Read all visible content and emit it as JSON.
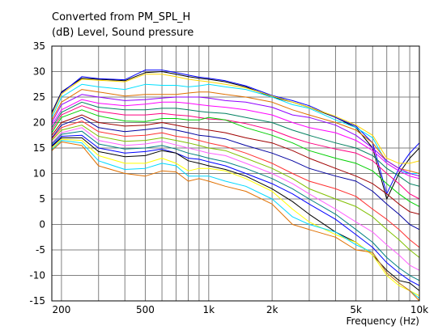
{
  "chart_data": {
    "type": "line",
    "title": "Converted from PM_SPL_H",
    "ylabel": "(dB)  Level, Sound pressure",
    "xlabel": "Frequency  (Hz)",
    "x_scale": "log",
    "xlim": [
      180,
      10000
    ],
    "ylim": [
      -15,
      35
    ],
    "grid": true,
    "y_ticks": [
      "35",
      "30",
      "25",
      "20",
      "15",
      "10",
      "5",
      "0",
      "-5",
      "-10",
      "-15"
    ],
    "x_ticks": [
      "200",
      "500",
      "1k",
      "2k",
      "5k",
      "10k"
    ],
    "x_tick_values": [
      200,
      500,
      1000,
      2000,
      5000,
      10000
    ],
    "x": [
      180,
      200,
      250,
      300,
      400,
      500,
      600,
      700,
      800,
      900,
      1000,
      1200,
      1500,
      2000,
      2500,
      3000,
      4000,
      5000,
      6000,
      7000,
      8000,
      9000,
      10000
    ],
    "series": [
      {
        "color": "#000000",
        "values": [
          22,
          26,
          28.7,
          28.5,
          28.2,
          29.8,
          30,
          29.5,
          29,
          28.7,
          28.5,
          28,
          27,
          25,
          24,
          23,
          21,
          19,
          15,
          5,
          10,
          13,
          15
        ]
      },
      {
        "color": "#0000ff",
        "values": [
          21.8,
          25.8,
          29,
          28.6,
          28.4,
          30.3,
          30.3,
          29.8,
          29.3,
          28.9,
          28.7,
          28.2,
          27.2,
          25.3,
          24.3,
          23.3,
          21,
          19.3,
          16,
          6,
          11,
          14,
          16
        ]
      },
      {
        "color": "#ffd700",
        "values": [
          21.5,
          25.6,
          28.5,
          28.3,
          28,
          29.5,
          29.5,
          29,
          28.5,
          28.2,
          28,
          27.5,
          26.8,
          25.2,
          24,
          23,
          21.2,
          19.5,
          17.5,
          13,
          12,
          12,
          12.5
        ]
      },
      {
        "color": "#00e0ff",
        "values": [
          21,
          25,
          27.5,
          27,
          26.5,
          27.5,
          27.3,
          27.3,
          27,
          27.2,
          27.5,
          27,
          26.5,
          25,
          23.5,
          22.8,
          20.5,
          19,
          17,
          12,
          10.5,
          10,
          10
        ]
      },
      {
        "color": "#e07000",
        "values": [
          20.5,
          24,
          26.5,
          26,
          25.2,
          25.5,
          25.5,
          25.5,
          25.8,
          26,
          26,
          25.5,
          25,
          24,
          22.5,
          21.5,
          20,
          18.5,
          16,
          12.5,
          11,
          10.5,
          10
        ]
      },
      {
        "color": "#9000ff",
        "values": [
          20,
          23.5,
          25.5,
          25,
          24.3,
          24.5,
          24.8,
          25,
          25,
          25,
          24.8,
          24.3,
          24,
          23,
          21.5,
          21,
          19.5,
          17.5,
          15,
          12.5,
          11,
          10,
          9.5
        ]
      },
      {
        "color": "#ff00ff",
        "values": [
          19.5,
          22.5,
          24.5,
          23.8,
          23.3,
          23.6,
          24,
          24,
          23.8,
          23.5,
          23.3,
          23,
          22.5,
          21.5,
          20,
          19,
          18,
          16.5,
          14.5,
          12,
          10.5,
          9.5,
          9
        ]
      },
      {
        "color": "#008060",
        "values": [
          19,
          22,
          24,
          23,
          22.5,
          22.5,
          22.8,
          22.8,
          22.5,
          22.2,
          22,
          21.8,
          21,
          20,
          18.5,
          17.5,
          16,
          15,
          13.5,
          11,
          9.5,
          8,
          7.5
        ]
      },
      {
        "color": "#ff0080",
        "values": [
          18.5,
          21.5,
          23.3,
          22.2,
          21.5,
          21.5,
          21.8,
          21.5,
          21.3,
          21,
          20.7,
          20.5,
          19.8,
          18.5,
          17,
          16,
          14.8,
          14,
          12.5,
          10,
          8,
          6,
          5
        ]
      },
      {
        "color": "#00d000",
        "values": [
          18,
          21,
          22.5,
          21.3,
          20.3,
          20.2,
          20.8,
          20.8,
          20.5,
          20.5,
          21,
          20.5,
          19,
          17.5,
          16,
          14.5,
          13,
          12,
          10.5,
          8,
          6,
          4.5,
          3.5
        ]
      },
      {
        "color": "#a00000",
        "values": [
          17.5,
          20,
          21.5,
          20,
          19.3,
          19.5,
          20,
          19.5,
          19,
          18.8,
          18.5,
          18,
          17,
          16,
          14.5,
          13,
          11,
          9.5,
          8,
          6,
          4,
          2.5,
          2
        ]
      },
      {
        "color": "#0000a0",
        "values": [
          17,
          19.5,
          21,
          19,
          18.2,
          18.6,
          19,
          18.5,
          18,
          17.5,
          17.3,
          16.8,
          15.5,
          14,
          12.5,
          11,
          9.5,
          8.5,
          6.5,
          4,
          2,
          0,
          -1
        ]
      },
      {
        "color": "#ff3030",
        "values": [
          16.8,
          19,
          20.3,
          18.2,
          17.3,
          17.5,
          18,
          17.3,
          17,
          16.5,
          16,
          15.3,
          14,
          12,
          10,
          8.5,
          7,
          5.5,
          3,
          1,
          -1,
          -3,
          -4.5
        ]
      },
      {
        "color": "#80c000",
        "values": [
          16.5,
          18.5,
          19.5,
          17.3,
          16.3,
          16.5,
          17,
          16.5,
          16,
          15.5,
          15,
          14.5,
          13,
          11,
          9,
          7,
          5,
          3.5,
          1.5,
          -1,
          -3,
          -5,
          -6.5
        ]
      },
      {
        "color": "#ff60ff",
        "values": [
          16,
          18,
          19,
          16.5,
          15.5,
          15.8,
          16.3,
          15.6,
          15,
          14.5,
          14,
          13.5,
          12,
          10,
          8,
          6,
          3,
          0.5,
          -1.5,
          -4,
          -6,
          -8,
          -9
        ]
      },
      {
        "color": "#008080",
        "values": [
          15.8,
          17.7,
          18.3,
          15.8,
          14.8,
          15,
          15.5,
          14.8,
          14,
          13.5,
          13,
          12.3,
          11,
          9,
          7,
          5,
          2,
          -1,
          -3.5,
          -6.5,
          -8.5,
          -10,
          -11
        ]
      },
      {
        "color": "#0000ff",
        "values": [
          15.5,
          17.3,
          17.5,
          15,
          14,
          14.3,
          14.8,
          14,
          13,
          12.8,
          12.3,
          11.5,
          10,
          8,
          6,
          4,
          1,
          -2,
          -4.5,
          -7.5,
          -9.5,
          -11,
          -12
        ]
      },
      {
        "color": "#000000",
        "values": [
          15.3,
          17,
          17,
          14.3,
          13.3,
          13.5,
          14.5,
          14,
          12.5,
          12,
          11.5,
          10.8,
          9.5,
          7,
          4.5,
          2,
          -1.5,
          -3.5,
          -6,
          -9,
          -11,
          -11.5,
          -13
        ]
      },
      {
        "color": "#ffff00",
        "values": [
          15,
          16.7,
          16.5,
          13.5,
          12,
          12,
          13,
          12,
          10.5,
          11,
          11,
          10.5,
          9,
          6.5,
          3,
          0.5,
          -2,
          -3.5,
          -6,
          -10,
          -12,
          -13,
          -14
        ]
      },
      {
        "color": "#00d8ff",
        "values": [
          14.7,
          16.5,
          16,
          12.5,
          10.8,
          11,
          12,
          11.5,
          9.5,
          9.5,
          9.5,
          8.5,
          7.5,
          5,
          1.5,
          0,
          -1.5,
          -4,
          -5.5,
          -9.5,
          -11.5,
          -13,
          -14.5
        ]
      },
      {
        "color": "#e07000",
        "values": [
          14.5,
          16.2,
          15.5,
          11.5,
          10,
          9.5,
          10.5,
          10.3,
          8.5,
          9,
          8.5,
          7.5,
          6.5,
          4,
          0,
          -1,
          -2.5,
          -5,
          -5.5,
          -9.5,
          -11.5,
          -13,
          -15
        ]
      }
    ]
  }
}
